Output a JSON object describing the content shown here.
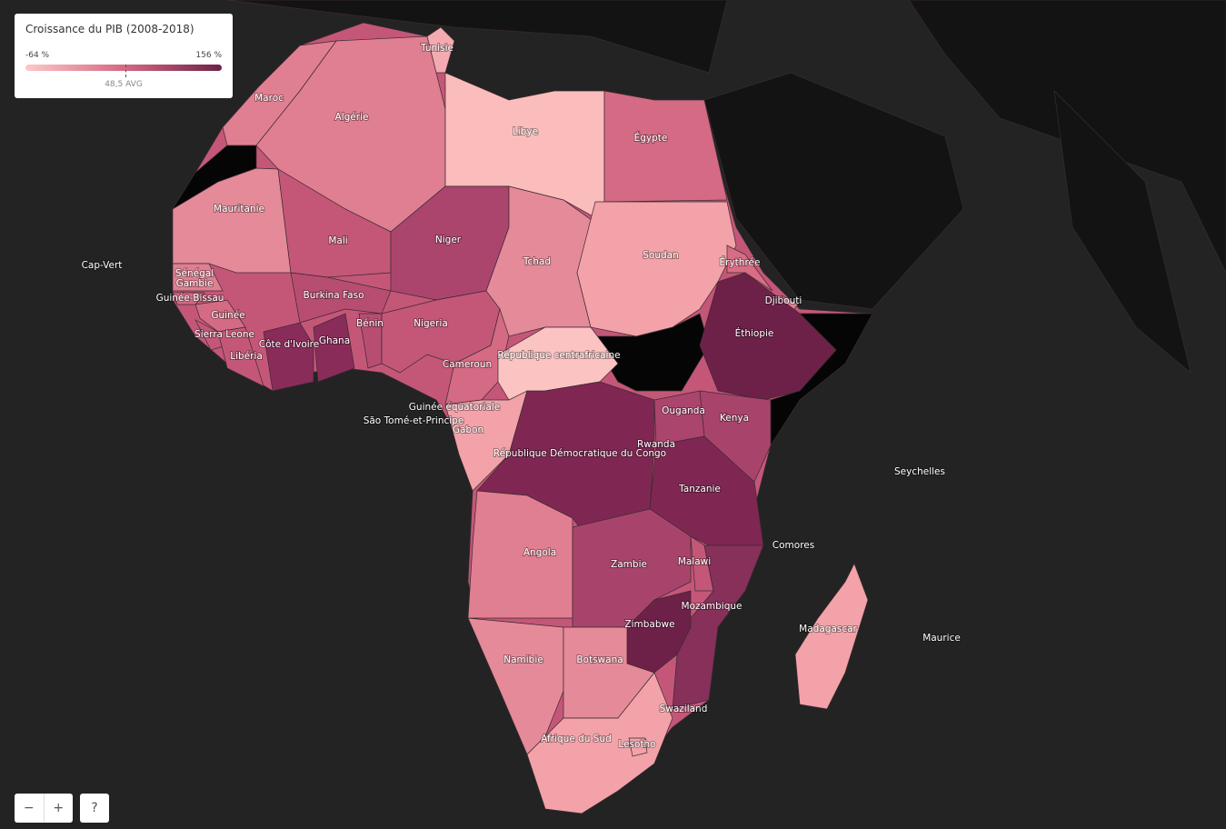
{
  "legend": {
    "title": "Croissance du PIB (2008-2018)",
    "min_label": "-64 %",
    "max_label": "156 %",
    "avg_label": "48,5 AVG"
  },
  "countries": [
    {
      "name": "Maroc",
      "color": "#e07f91"
    },
    {
      "name": "Algérie",
      "color": "#e07f91"
    },
    {
      "name": "Tunisie",
      "color": "#f3aab0"
    },
    {
      "name": "Libye",
      "color": "#fbbcbc"
    },
    {
      "name": "Égypte",
      "color": "#d46a83"
    },
    {
      "name": "Mauritanie",
      "color": "#e58a99"
    },
    {
      "name": "Mali",
      "color": "#c45778"
    },
    {
      "name": "Niger",
      "color": "#ab456d"
    },
    {
      "name": "Tchad",
      "color": "#e58a99"
    },
    {
      "name": "Soudan",
      "color": "#f2a2a8"
    },
    {
      "name": "Érythrée",
      "color": "#d86d85"
    },
    {
      "name": "Djibouti",
      "color": "#e07f91"
    },
    {
      "name": "Éthiopie",
      "color": "#6e2148"
    },
    {
      "name": "Sénégal",
      "color": "#e07f91"
    },
    {
      "name": "Gambie",
      "color": "#e07f91"
    },
    {
      "name": "Guinée-Bissau",
      "color": "#d46a83"
    },
    {
      "name": "Guinée",
      "color": "#d46a83"
    },
    {
      "name": "Sierra Leone",
      "color": "#c45778"
    },
    {
      "name": "Libéria",
      "color": "#c45778"
    },
    {
      "name": "Côte d'Ivoire",
      "color": "#8a2c5a"
    },
    {
      "name": "Ghana",
      "color": "#8a2c5a"
    },
    {
      "name": "Burkina Faso",
      "color": "#b84d72"
    },
    {
      "name": "Bénin",
      "color": "#b84d72"
    },
    {
      "name": "Nigeria",
      "color": "#c45778"
    },
    {
      "name": "Cameroun",
      "color": "#d46a83"
    },
    {
      "name": "République centrafricaine",
      "color": "#fcc3c3"
    },
    {
      "name": "Guinée équatoriale",
      "color": "#d46a83"
    },
    {
      "name": "São Tomé-et-Principe",
      "color": "#d46a83"
    },
    {
      "name": "Gabon",
      "color": "#f2a2a8"
    },
    {
      "name": "République Démocratique du Congo",
      "color": "#7f2752"
    },
    {
      "name": "Ouganda",
      "color": "#ab456d"
    },
    {
      "name": "Kenya",
      "color": "#a8446b"
    },
    {
      "name": "Rwanda",
      "color": "#ab456d"
    },
    {
      "name": "Tanzanie",
      "color": "#7f2752"
    },
    {
      "name": "Angola",
      "color": "#e07f91"
    },
    {
      "name": "Zambie",
      "color": "#a8446b"
    },
    {
      "name": "Malawi",
      "color": "#c45778"
    },
    {
      "name": "Mozambique",
      "color": "#86305a"
    },
    {
      "name": "Zimbabwe",
      "color": "#6e2148"
    },
    {
      "name": "Namibie",
      "color": "#e58a99"
    },
    {
      "name": "Botswana",
      "color": "#e58a99"
    },
    {
      "name": "Afrique du Sud",
      "color": "#f2a2a8"
    },
    {
      "name": "Swaziland",
      "color": "#c45778"
    },
    {
      "name": "Lesotho",
      "color": "#f2a2a8"
    },
    {
      "name": "Madagascar",
      "color": "#f2a2a8"
    },
    {
      "name": "Comores",
      "color": "#d46a83"
    },
    {
      "name": "Seychelles",
      "color": "#d46a83"
    },
    {
      "name": "Maurice",
      "color": "#d46a83"
    },
    {
      "name": "Cap-Vert",
      "color": "#d46a83"
    }
  ],
  "controls": [
    "−",
    "+",
    "?"
  ]
}
